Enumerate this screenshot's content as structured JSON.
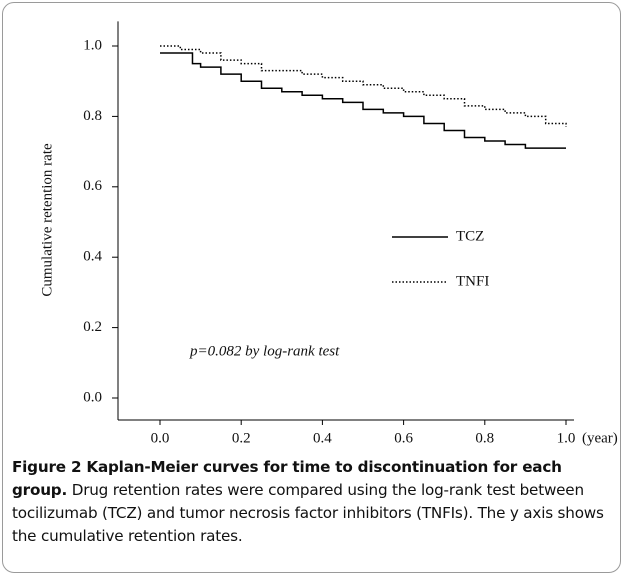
{
  "chart_data": {
    "type": "line",
    "ylabel": "Cumulative  retention  rate",
    "xlabel": "(year)",
    "annotation": "p=0.082  by  log-rank  test",
    "xlim": [
      0,
      1
    ],
    "xticks": [
      {
        "value": 0,
        "label": "0.0"
      },
      0.2,
      0.4,
      0.6,
      0.8,
      {
        "value": 1,
        "label": "1.0"
      }
    ],
    "ylim": [
      -0.05,
      1.07
    ],
    "yticks": [
      {
        "value": 0,
        "label": "0.0"
      },
      0.2,
      0.4,
      0.6,
      0.8,
      {
        "value": 1,
        "label": "1.0"
      }
    ],
    "grid": false,
    "series": [
      {
        "name": "TCZ",
        "color": "#000000",
        "linestyle": "solid",
        "x": [
          0,
          0.08,
          0.1,
          0.15,
          0.2,
          0.25,
          0.3,
          0.35,
          0.4,
          0.45,
          0.5,
          0.55,
          0.6,
          0.65,
          0.7,
          0.75,
          0.8,
          0.85,
          0.9,
          1.0
        ],
        "values": [
          0.98,
          0.95,
          0.94,
          0.92,
          0.9,
          0.88,
          0.87,
          0.86,
          0.85,
          0.84,
          0.82,
          0.81,
          0.8,
          0.78,
          0.76,
          0.74,
          0.73,
          0.72,
          0.71,
          0.71
        ]
      },
      {
        "name": "TNFI",
        "color": "#000000",
        "linestyle": "dotted",
        "x": [
          0,
          0.05,
          0.1,
          0.15,
          0.2,
          0.25,
          0.3,
          0.35,
          0.4,
          0.45,
          0.5,
          0.55,
          0.6,
          0.65,
          0.7,
          0.75,
          0.8,
          0.85,
          0.9,
          0.95,
          1.0
        ],
        "values": [
          1.0,
          0.99,
          0.98,
          0.96,
          0.95,
          0.93,
          0.93,
          0.92,
          0.91,
          0.9,
          0.89,
          0.88,
          0.87,
          0.86,
          0.85,
          0.83,
          0.82,
          0.81,
          0.8,
          0.78,
          0.77
        ]
      }
    ]
  },
  "caption": {
    "title": "Figure 2 Kaplan-Meier curves for time to discontinuation for each group.",
    "text": "Drug retention rates were compared using the log-rank test between tocilizumab (TCZ) and tumor necrosis factor inhibitors (TNFIs). The y axis shows the cumulative retention rates."
  }
}
